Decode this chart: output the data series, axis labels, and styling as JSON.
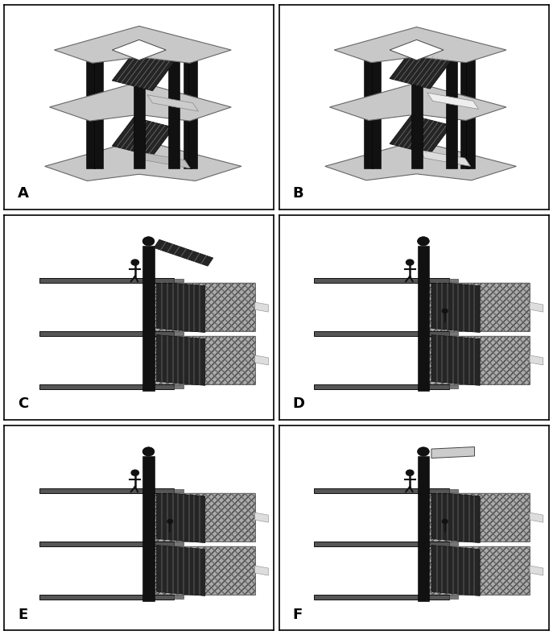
{
  "figure_width": 6.87,
  "figure_height": 7.88,
  "dpi": 100,
  "bg": "#ffffff",
  "border_color": "#000000",
  "border_lw": 1.2,
  "labels": [
    "A",
    "B",
    "C",
    "D",
    "E",
    "F"
  ],
  "label_fs": 13,
  "label_fw": "bold",
  "rows": 3,
  "cols": 2,
  "lm": 0.008,
  "rm": 0.008,
  "tm": 0.008,
  "bm": 0.008,
  "hs": 0.01,
  "vs": 0.01,
  "floor_light": "#c8c8c8",
  "floor_dark": "#555555",
  "col_black": "#111111",
  "stair_dark": "#252525",
  "stair_line": "#999999",
  "wall_fill": "#aaaaaa",
  "wall_hatch": "#555555",
  "landing_color": "#bbbbbb",
  "platform_light": "#dddddd"
}
